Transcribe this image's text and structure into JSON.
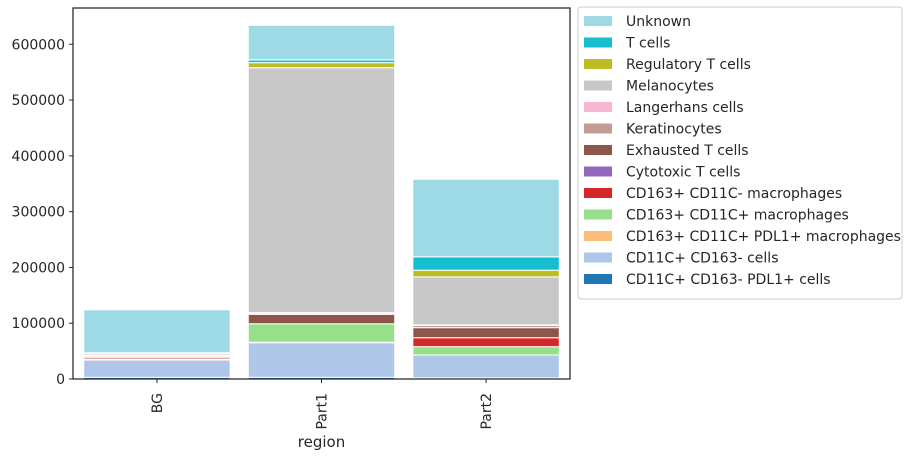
{
  "chart_data": {
    "type": "bar",
    "stacked": true,
    "categories": [
      "BG",
      "Part1",
      "Part2"
    ],
    "xlabel": "region",
    "ylabel": "",
    "ylim": [
      0,
      665000
    ],
    "yticks": [
      0,
      100000,
      200000,
      300000,
      400000,
      500000,
      600000
    ],
    "ytick_labels": [
      "0",
      "100000",
      "200000",
      "300000",
      "400000",
      "500000",
      "600000"
    ],
    "grid": false,
    "legend_position": "outside-right",
    "series": [
      {
        "name": "CD11C+ CD163- PDL1+ cells",
        "color": "#1f77b4",
        "values": [
          3000,
          3000,
          2000
        ]
      },
      {
        "name": "CD11C+ CD163- cells",
        "color": "#aec7e8",
        "values": [
          31000,
          62000,
          41000
        ]
      },
      {
        "name": "CD163+ CD11C+ PDL1+ macrophages",
        "color": "#ffbb78",
        "values": [
          0,
          1000,
          0
        ]
      },
      {
        "name": "CD163+ CD11C+ macrophages",
        "color": "#98df8a",
        "values": [
          2000,
          33000,
          15000
        ]
      },
      {
        "name": "CD163+ CD11C-  macrophages",
        "color": "#d62728",
        "values": [
          3000,
          0,
          16000
        ]
      },
      {
        "name": "Cytotoxic T cells",
        "color": "#9467bd",
        "values": [
          0,
          0,
          0
        ]
      },
      {
        "name": "Exhausted T cells",
        "color": "#8c564b",
        "values": [
          2000,
          17000,
          18000
        ]
      },
      {
        "name": "Keratinocytes",
        "color": "#c49c94",
        "values": [
          1000,
          2000,
          4000
        ]
      },
      {
        "name": "Langerhans cells",
        "color": "#f7b6d2",
        "values": [
          1000,
          1000,
          1000
        ]
      },
      {
        "name": "Melanocytes",
        "color": "#c7c7c7",
        "values": [
          3000,
          439000,
          86000
        ]
      },
      {
        "name": "Regulatory T cells",
        "color": "#bcbd22",
        "values": [
          1000,
          9000,
          12000
        ]
      },
      {
        "name": "T cells",
        "color": "#17becf",
        "values": [
          0,
          5000,
          24000
        ]
      },
      {
        "name": "Unknown",
        "color": "#9edae5",
        "values": [
          77000,
          62000,
          139000
        ]
      }
    ]
  }
}
